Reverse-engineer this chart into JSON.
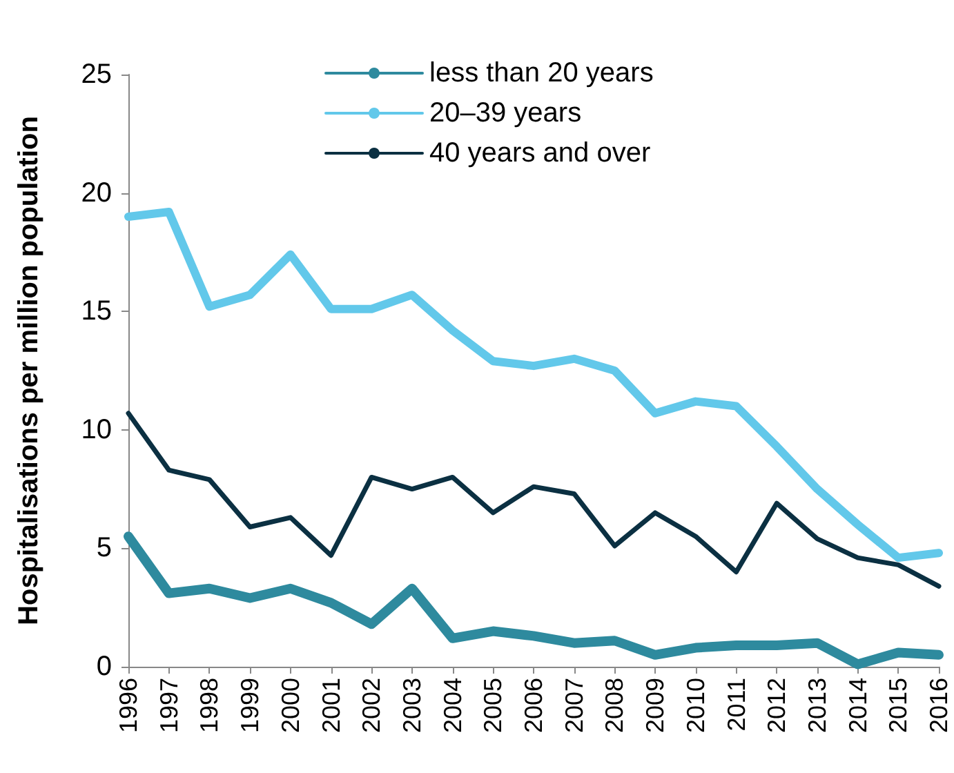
{
  "chart_data": {
    "type": "line",
    "ylabel": "Hospitalisations per million population",
    "categories": [
      "1996",
      "1997",
      "1998",
      "1999",
      "2000",
      "2001",
      "2002",
      "2003",
      "2004",
      "2005",
      "2006",
      "2007",
      "2008",
      "2009",
      "2010",
      "2011",
      "2012",
      "2013",
      "2014",
      "2015",
      "2016"
    ],
    "series": [
      {
        "name": "less than 20 years",
        "color": "#2e8a9e",
        "values": [
          5.5,
          3.1,
          3.3,
          2.9,
          3.3,
          2.7,
          1.8,
          3.3,
          1.2,
          1.5,
          1.3,
          1.0,
          1.1,
          0.5,
          0.8,
          0.9,
          0.9,
          1.0,
          0.1,
          0.6,
          0.5
        ]
      },
      {
        "name": "20–39 years",
        "color": "#62c8ea",
        "values": [
          19.0,
          19.2,
          15.2,
          15.7,
          17.4,
          15.1,
          15.1,
          15.7,
          14.2,
          12.9,
          12.7,
          13.0,
          12.5,
          10.7,
          11.2,
          11.0,
          9.3,
          7.5,
          6.0,
          4.6,
          4.8
        ]
      },
      {
        "name": "40 years and over",
        "color": "#0b3042",
        "values": [
          10.7,
          8.3,
          7.9,
          5.9,
          6.3,
          4.7,
          8.0,
          7.5,
          8.0,
          6.5,
          7.6,
          7.3,
          5.1,
          6.5,
          5.5,
          4.0,
          6.9,
          5.4,
          4.6,
          4.3,
          3.4
        ]
      }
    ],
    "ylim": [
      0,
      25
    ],
    "yticks": [
      0,
      5,
      10,
      15,
      20,
      25
    ],
    "grid": false,
    "legend": "top",
    "marker": "none",
    "line_style": "solid"
  }
}
